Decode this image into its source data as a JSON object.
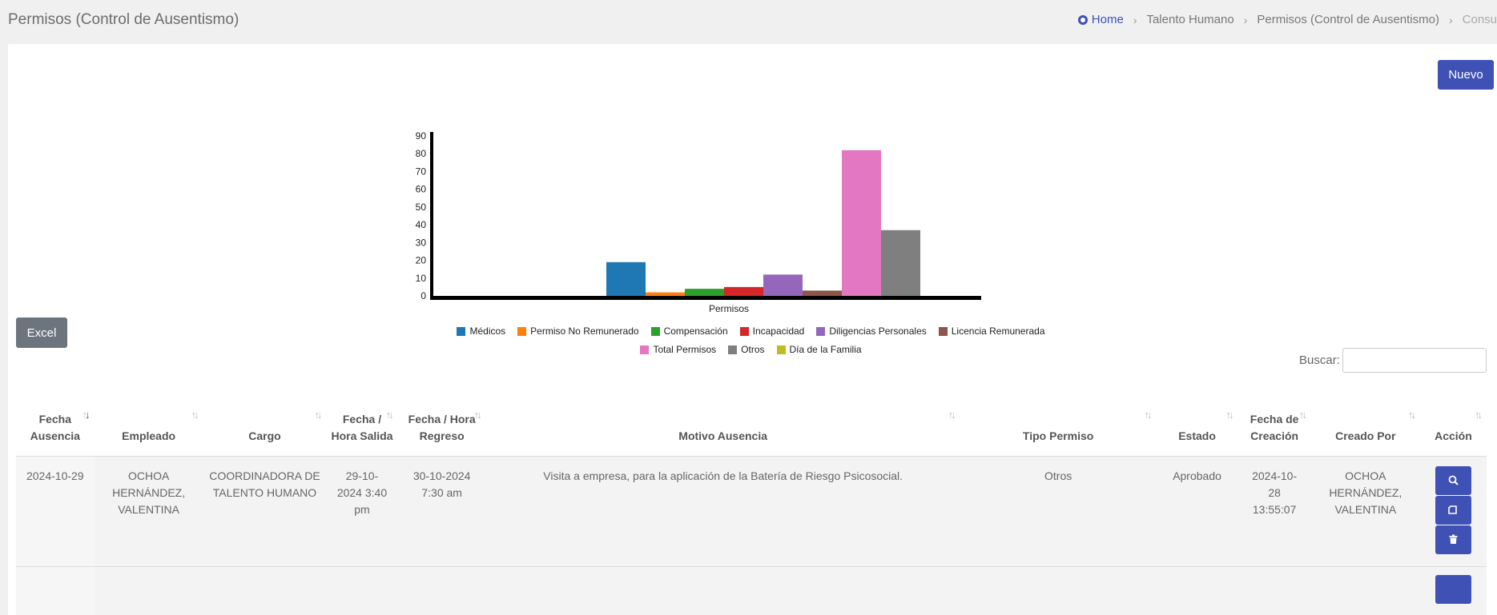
{
  "header": {
    "title": "Permisos (Control de Ausentismo)",
    "breadcrumb": [
      "Home",
      "Talento Humano",
      "Permisos (Control de Ausentismo)",
      "Consu"
    ]
  },
  "buttons": {
    "nuevo": "Nuevo",
    "excel": "Excel"
  },
  "search": {
    "label": "Buscar:",
    "value": ""
  },
  "chart_data": {
    "type": "bar",
    "xlabel": "Permisos",
    "ylim": [
      0,
      90
    ],
    "yticks": [
      0,
      10,
      20,
      30,
      40,
      50,
      60,
      70,
      80,
      90
    ],
    "series": [
      {
        "name": "Médicos",
        "value": 19,
        "color": "#1f77b4"
      },
      {
        "name": "Permiso No Remunerado",
        "value": 2,
        "color": "#ff7f0e"
      },
      {
        "name": "Compensación",
        "value": 4,
        "color": "#2ca02c"
      },
      {
        "name": "Incapacidad",
        "value": 5,
        "color": "#d62728"
      },
      {
        "name": "Diligencias Personales",
        "value": 12,
        "color": "#9467bd"
      },
      {
        "name": "Licencia Remunerada",
        "value": 3,
        "color": "#8c564b"
      },
      {
        "name": "Total Permisos",
        "value": 82,
        "color": "#e377c2"
      },
      {
        "name": "Otros",
        "value": 37,
        "color": "#7f7f7f"
      },
      {
        "name": "Día de la Familia",
        "value": 0,
        "color": "#bcbd22"
      }
    ]
  },
  "table": {
    "columns": [
      "Fecha Ausencia",
      "Empleado",
      "Cargo",
      "Fecha / Hora Salida",
      "Fecha / Hora Regreso",
      "Motivo Ausencia",
      "Tipo Permiso",
      "Estado",
      "Fecha de Creación",
      "Creado Por",
      "Acción"
    ],
    "rows": [
      {
        "fecha_ausencia": "2024-10-29",
        "empleado": "OCHOA HERNÁNDEZ, VALENTINA",
        "cargo": "COORDINADORA DE TALENTO HUMANO",
        "salida": "29-10-2024 3:40 pm",
        "regreso": "30-10-2024 7:30 am",
        "motivo": "Visita a empresa, para la aplicación de la Batería de Riesgo Psicosocial.",
        "tipo": "Otros",
        "estado": "Aprobado",
        "creacion": "2024-10-28 13:55:07",
        "creado_por": "OCHOA HERNÁNDEZ, VALENTINA"
      }
    ]
  }
}
